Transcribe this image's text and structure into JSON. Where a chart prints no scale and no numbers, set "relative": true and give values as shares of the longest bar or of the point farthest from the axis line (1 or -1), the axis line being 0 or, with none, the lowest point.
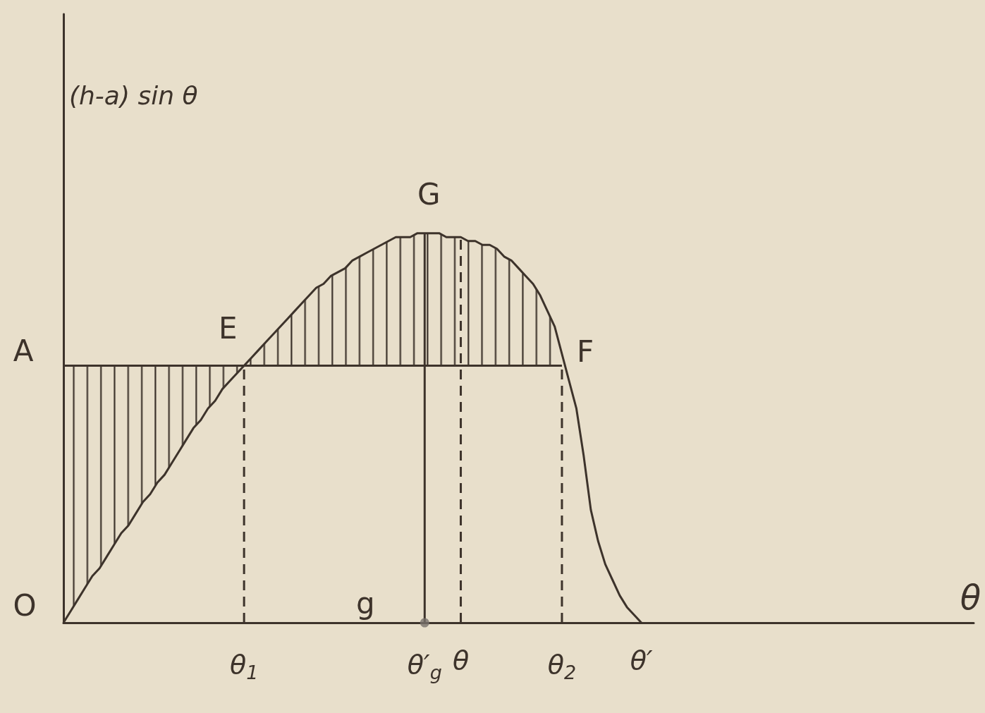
{
  "chart_data": {
    "type": "line",
    "relative": true,
    "xlabel": "θ",
    "ylabel": "(h-a) sin θ",
    "categories": [
      null,
      null,
      null,
      null,
      null,
      null,
      null,
      null,
      null,
      null,
      null,
      null,
      null,
      null,
      null,
      null,
      null,
      null,
      null,
      null,
      null,
      null,
      null,
      null,
      null,
      "θ$_{1}$",
      null,
      null,
      null,
      null,
      null,
      null,
      null,
      null,
      null,
      null,
      null,
      null,
      null,
      null,
      null,
      null,
      null,
      null,
      null,
      null,
      null,
      null,
      null,
      null,
      "θ′$_{g}$",
      null,
      null,
      null,
      null,
      "θ",
      null,
      null,
      null,
      null,
      null,
      null,
      null,
      null,
      null,
      null,
      null,
      null,
      null,
      "θ$_{2}$",
      null,
      null,
      null,
      null,
      null,
      null,
      null,
      null,
      null,
      null,
      "θ′",
      null,
      null,
      null,
      null,
      null,
      null,
      null,
      null,
      null,
      null,
      null,
      null,
      null,
      null,
      null,
      null,
      null,
      null,
      null,
      null,
      null,
      null,
      null,
      null,
      null,
      null,
      null,
      null,
      null,
      null,
      null,
      null,
      null,
      null,
      null,
      null,
      null,
      null,
      null,
      null,
      null,
      null,
      null,
      null,
      null,
      null
    ],
    "series": [
      {
        "color": "#3d332b",
        "values": [
          0,
          0.03,
          0.06,
          0.09,
          0.12,
          0.14,
          0.17,
          0.2,
          0.23,
          0.25,
          0.28,
          0.31,
          0.33,
          0.36,
          0.38,
          0.41,
          0.44,
          0.47,
          0.5,
          0.52,
          0.55,
          0.57,
          0.6,
          0.62,
          0.64,
          0.66,
          0.68,
          0.7,
          0.72,
          0.74,
          0.76,
          0.78,
          0.8,
          0.82,
          0.84,
          0.86,
          0.87,
          0.89,
          0.9,
          0.91,
          0.93,
          0.94,
          0.95,
          0.96,
          0.97,
          0.98,
          0.99,
          0.99,
          0.99,
          1.0,
          1.0,
          1.0,
          1.0,
          0.99,
          0.99,
          0.99,
          0.98,
          0.98,
          0.97,
          0.97,
          0.96,
          0.94,
          0.93,
          0.91,
          0.89,
          0.87,
          0.84,
          0.8,
          0.76,
          0.69,
          0.62,
          0.55,
          0.43,
          0.29,
          0.21,
          0.15,
          0.11,
          0.07,
          0.04,
          0.02,
          0,
          null,
          null,
          null,
          null,
          null,
          null,
          null,
          null,
          null,
          null,
          null,
          null,
          null,
          null,
          null,
          null,
          null,
          null,
          null,
          null,
          null,
          null,
          null,
          null,
          null,
          null,
          null,
          null,
          null,
          null,
          null,
          null,
          null,
          null,
          null,
          null,
          null,
          null,
          null,
          null,
          null,
          null,
          null,
          null,
          null,
          null
        ],
        "lower": [
          0,
          0.03,
          0.06,
          0.09,
          0.12,
          0.14,
          0.17,
          0.2,
          0.23,
          0.25,
          0.28,
          0.31,
          0.33,
          0.36,
          0.38,
          0.41,
          0.44,
          0.47,
          0.5,
          0.52,
          0.55,
          0.57,
          0.6,
          0.62,
          0.64,
          0.66,
          0.66,
          0.66,
          0.66,
          0.66,
          0.66,
          0.66,
          0.66,
          0.66,
          0.66,
          0.66,
          0.66,
          0.66,
          0.66,
          0.66,
          0.66,
          0.66,
          0.66,
          0.66,
          0.66,
          0.66,
          0.66,
          0.66,
          0.66,
          0.66,
          0.66,
          0.66,
          0.66,
          0.66,
          0.66,
          0.66,
          0.66,
          0.66,
          0.66,
          0.66,
          0.66,
          0.66,
          0.66,
          0.66,
          0.66,
          0.66,
          0.66,
          0.66,
          0.66,
          0.66,
          null,
          null,
          null,
          null,
          null,
          null,
          null,
          null,
          null,
          null,
          null,
          null,
          null,
          null,
          null,
          null,
          null,
          null,
          null,
          null,
          null,
          null,
          null,
          null,
          null,
          null,
          null,
          null,
          null,
          null,
          null,
          null,
          null,
          null,
          null,
          null,
          null,
          null,
          null,
          null,
          null,
          null,
          null,
          null,
          null,
          null,
          null,
          null,
          null,
          null,
          null,
          null,
          null,
          null,
          null,
          null,
          null
        ],
        "upper": [
          0.66,
          0.66,
          0.66,
          0.66,
          0.66,
          0.66,
          0.66,
          0.66,
          0.66,
          0.66,
          0.66,
          0.66,
          0.66,
          0.66,
          0.66,
          0.66,
          0.66,
          0.66,
          0.66,
          0.66,
          0.66,
          0.66,
          0.66,
          0.66,
          0.66,
          0.66,
          0.68,
          0.7,
          0.72,
          0.74,
          0.76,
          0.78,
          0.8,
          0.82,
          0.84,
          0.86,
          0.87,
          0.89,
          0.9,
          0.91,
          0.93,
          0.94,
          0.95,
          0.96,
          0.97,
          0.98,
          0.99,
          0.99,
          0.99,
          1.0,
          1.0,
          1.0,
          1.0,
          0.99,
          0.99,
          0.99,
          0.98,
          0.98,
          0.97,
          0.97,
          0.96,
          0.94,
          0.93,
          0.91,
          0.89,
          0.87,
          0.84,
          0.8,
          0.76,
          0.69,
          null,
          null,
          null,
          null,
          null,
          null,
          null,
          null,
          null,
          null,
          null,
          null,
          null,
          null,
          null,
          null,
          null,
          null,
          null,
          null,
          null,
          null,
          null,
          null,
          null,
          null,
          null,
          null,
          null,
          null,
          null,
          null,
          null,
          null,
          null,
          null,
          null,
          null,
          null,
          null,
          null,
          null,
          null,
          null,
          null,
          null,
          null,
          null,
          null,
          null,
          null,
          null,
          null,
          null,
          null,
          null,
          null
        ]
      },
      {
        "name": "A",
        "color": "#3d332b",
        "values": [
          0.66,
          0.66,
          0.66,
          0.66,
          0.66,
          0.66,
          0.66,
          0.66,
          0.66,
          0.66,
          0.66,
          0.66,
          0.66,
          0.66,
          0.66,
          0.66,
          0.66,
          0.66,
          0.66,
          0.66,
          0.66,
          0.66,
          0.66,
          0.66,
          0.66,
          0.66,
          0.66,
          0.66,
          0.66,
          0.66,
          0.66,
          0.66,
          0.66,
          0.66,
          0.66,
          0.66,
          0.66,
          0.66,
          0.66,
          0.66,
          0.66,
          0.66,
          0.66,
          0.66,
          0.66,
          0.66,
          0.66,
          0.66,
          0.66,
          0.66,
          0.66,
          0.66,
          0.66,
          0.66,
          0.66,
          0.66,
          0.66,
          0.66,
          0.66,
          0.66,
          0.66,
          0.66,
          0.66,
          0.66,
          0.66,
          0.66,
          0.66,
          0.66,
          0.66,
          0.66,
          null,
          null,
          null,
          null,
          null,
          null,
          null,
          null,
          null,
          null,
          null,
          null,
          null,
          null,
          null,
          null,
          null,
          null,
          null,
          null,
          null,
          null,
          null,
          null,
          null,
          null,
          null,
          null,
          null,
          null,
          null,
          null,
          null,
          null,
          null,
          null,
          null,
          null,
          null,
          null,
          null,
          null,
          null,
          null,
          null,
          null,
          null,
          null,
          null,
          null,
          null,
          null,
          null,
          null,
          null,
          null,
          null
        ]
      },
      {
        "color": "#3d332b",
        "line_style": "dashed",
        "x": [
          "θ$_{1}$",
          "θ$_{1}$"
        ],
        "values": [
          0,
          0.66
        ]
      },
      {
        "color": "#3d332b",
        "line_style": "solid",
        "x": [
          "θ′$_{g}$",
          "θ′$_{g}$"
        ],
        "values": [
          0,
          1.0
        ]
      },
      {
        "color": "#3d332b",
        "line_style": "dashed",
        "x": [
          "θ",
          "θ"
        ],
        "values": [
          0,
          0.99
        ]
      },
      {
        "color": "#3d332b",
        "line_style": "dashed",
        "x": [
          "θ$_{2}$",
          "θ$_{2}$"
        ],
        "values": [
          0,
          0.66
        ]
      },
      {
        "type": "scatter",
        "color": "#77716b",
        "marker": "circle",
        "x": [
          "θ′$_{g}$"
        ],
        "values": [
          0
        ]
      }
    ],
    "annotations": [
      {
        "text": "E",
        "x": "θ$_{1}$",
        "y": 0.66
      },
      {
        "text": "F",
        "x": "θ$_{2}$",
        "y": 0.66
      },
      {
        "text": "G",
        "x": "θ′$_{g}$",
        "y": 1.0
      },
      {
        "text": "g",
        "x": "θ′$_{g}$",
        "y": 0
      },
      "O"
    ]
  }
}
